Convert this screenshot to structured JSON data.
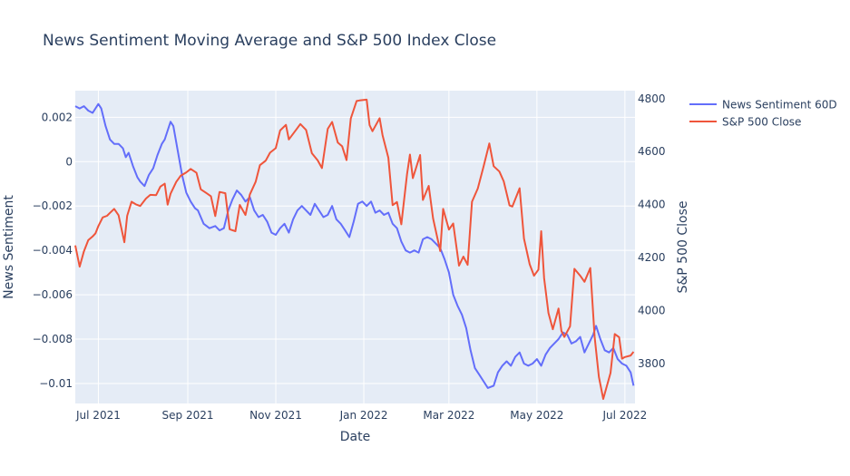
{
  "chart_data": {
    "type": "line",
    "title": "News Sentiment Moving Average and S&P 500 Index Close",
    "xlabel": "Date",
    "ylabel_left": "News Sentiment",
    "ylabel_right": "S&P 500 Close",
    "x_range": [
      "2021-06-15",
      "2022-07-08"
    ],
    "y_left_range": [
      -0.0109,
      0.0032
    ],
    "y_right_range": [
      3650,
      4830
    ],
    "x_ticks": [
      {
        "date": "2021-07-01",
        "label": "Jul 2021"
      },
      {
        "date": "2021-09-01",
        "label": "Sep 2021"
      },
      {
        "date": "2021-11-01",
        "label": "Nov 2021"
      },
      {
        "date": "2022-01-01",
        "label": "Jan 2022"
      },
      {
        "date": "2022-03-01",
        "label": "Mar 2022"
      },
      {
        "date": "2022-05-01",
        "label": "May 2022"
      },
      {
        "date": "2022-07-01",
        "label": "Jul 2022"
      }
    ],
    "y_left_ticks": [
      {
        "value": 0.002,
        "label": "0.002"
      },
      {
        "value": 0,
        "label": "0"
      },
      {
        "value": -0.002,
        "label": "−0.002"
      },
      {
        "value": -0.004,
        "label": "−0.004"
      },
      {
        "value": -0.006,
        "label": "−0.006"
      },
      {
        "value": -0.008,
        "label": "−0.008"
      },
      {
        "value": -0.01,
        "label": "−0.01"
      }
    ],
    "y_right_ticks": [
      {
        "value": 4800,
        "label": "4800"
      },
      {
        "value": 4600,
        "label": "4600"
      },
      {
        "value": 4400,
        "label": "4400"
      },
      {
        "value": 4200,
        "label": "4200"
      },
      {
        "value": 4000,
        "label": "4000"
      },
      {
        "value": 3800,
        "label": "3800"
      }
    ],
    "grid": true,
    "legend_position": "top-right",
    "series": [
      {
        "name": "News Sentiment 60D",
        "axis": "left",
        "color": "#636efa",
        "points": [
          [
            "2021-06-15",
            0.0025
          ],
          [
            "2021-06-18",
            0.0024
          ],
          [
            "2021-06-21",
            0.0025
          ],
          [
            "2021-06-24",
            0.0023
          ],
          [
            "2021-06-27",
            0.0022
          ],
          [
            "2021-07-01",
            0.0026
          ],
          [
            "2021-07-03",
            0.0024
          ],
          [
            "2021-07-06",
            0.0016
          ],
          [
            "2021-07-09",
            0.001
          ],
          [
            "2021-07-12",
            0.0008
          ],
          [
            "2021-07-15",
            0.0008
          ],
          [
            "2021-07-18",
            0.0006
          ],
          [
            "2021-07-20",
            0.0002
          ],
          [
            "2021-07-22",
            0.0004
          ],
          [
            "2021-07-25",
            -0.0002
          ],
          [
            "2021-07-28",
            -0.0007
          ],
          [
            "2021-07-30",
            -0.0009
          ],
          [
            "2021-08-02",
            -0.0011
          ],
          [
            "2021-08-05",
            -0.0006
          ],
          [
            "2021-08-08",
            -0.0003
          ],
          [
            "2021-08-11",
            0.0003
          ],
          [
            "2021-08-14",
            0.0008
          ],
          [
            "2021-08-16",
            0.001
          ],
          [
            "2021-08-18",
            0.0014
          ],
          [
            "2021-08-20",
            0.0018
          ],
          [
            "2021-08-22",
            0.0016
          ],
          [
            "2021-08-25",
            0.0005
          ],
          [
            "2021-08-28",
            -0.0006
          ],
          [
            "2021-08-31",
            -0.0014
          ],
          [
            "2021-09-03",
            -0.0018
          ],
          [
            "2021-09-06",
            -0.0021
          ],
          [
            "2021-09-08",
            -0.0022
          ],
          [
            "2021-09-12",
            -0.0028
          ],
          [
            "2021-09-16",
            -0.003
          ],
          [
            "2021-09-20",
            -0.0029
          ],
          [
            "2021-09-23",
            -0.0031
          ],
          [
            "2021-09-26",
            -0.003
          ],
          [
            "2021-09-29",
            -0.0022
          ],
          [
            "2021-10-02",
            -0.0017
          ],
          [
            "2021-10-05",
            -0.0013
          ],
          [
            "2021-10-08",
            -0.0015
          ],
          [
            "2021-10-11",
            -0.0018
          ],
          [
            "2021-10-14",
            -0.0016
          ],
          [
            "2021-10-17",
            -0.0022
          ],
          [
            "2021-10-20",
            -0.0025
          ],
          [
            "2021-10-23",
            -0.0024
          ],
          [
            "2021-10-26",
            -0.0027
          ],
          [
            "2021-10-29",
            -0.0032
          ],
          [
            "2021-11-01",
            -0.0033
          ],
          [
            "2021-11-04",
            -0.003
          ],
          [
            "2021-11-07",
            -0.0028
          ],
          [
            "2021-11-10",
            -0.0032
          ],
          [
            "2021-11-13",
            -0.0026
          ],
          [
            "2021-11-16",
            -0.0022
          ],
          [
            "2021-11-19",
            -0.002
          ],
          [
            "2021-11-22",
            -0.0022
          ],
          [
            "2021-11-25",
            -0.0024
          ],
          [
            "2021-11-28",
            -0.0019
          ],
          [
            "2021-12-01",
            -0.0022
          ],
          [
            "2021-12-04",
            -0.0025
          ],
          [
            "2021-12-07",
            -0.0024
          ],
          [
            "2021-12-10",
            -0.002
          ],
          [
            "2021-12-13",
            -0.0026
          ],
          [
            "2021-12-16",
            -0.0028
          ],
          [
            "2021-12-19",
            -0.0031
          ],
          [
            "2021-12-22",
            -0.0034
          ],
          [
            "2021-12-25",
            -0.0027
          ],
          [
            "2021-12-28",
            -0.0019
          ],
          [
            "2021-12-31",
            -0.0018
          ],
          [
            "2022-01-03",
            -0.002
          ],
          [
            "2022-01-06",
            -0.0018
          ],
          [
            "2022-01-09",
            -0.0023
          ],
          [
            "2022-01-12",
            -0.0022
          ],
          [
            "2022-01-15",
            -0.0024
          ],
          [
            "2022-01-18",
            -0.0023
          ],
          [
            "2022-01-21",
            -0.0028
          ],
          [
            "2022-01-24",
            -0.003
          ],
          [
            "2022-01-27",
            -0.0036
          ],
          [
            "2022-01-30",
            -0.004
          ],
          [
            "2022-02-02",
            -0.0041
          ],
          [
            "2022-02-05",
            -0.004
          ],
          [
            "2022-02-08",
            -0.0041
          ],
          [
            "2022-02-11",
            -0.0035
          ],
          [
            "2022-02-14",
            -0.0034
          ],
          [
            "2022-02-17",
            -0.0035
          ],
          [
            "2022-02-20",
            -0.0037
          ],
          [
            "2022-02-23",
            -0.0039
          ],
          [
            "2022-02-26",
            -0.0044
          ],
          [
            "2022-03-01",
            -0.005
          ],
          [
            "2022-03-04",
            -0.006
          ],
          [
            "2022-03-07",
            -0.0065
          ],
          [
            "2022-03-10",
            -0.0069
          ],
          [
            "2022-03-13",
            -0.0075
          ],
          [
            "2022-03-16",
            -0.0085
          ],
          [
            "2022-03-19",
            -0.0093
          ],
          [
            "2022-03-22",
            -0.0096
          ],
          [
            "2022-03-25",
            -0.0099
          ],
          [
            "2022-03-28",
            -0.0102
          ],
          [
            "2022-04-01",
            -0.0101
          ],
          [
            "2022-04-04",
            -0.0095
          ],
          [
            "2022-04-07",
            -0.0092
          ],
          [
            "2022-04-10",
            -0.009
          ],
          [
            "2022-04-13",
            -0.0092
          ],
          [
            "2022-04-16",
            -0.0088
          ],
          [
            "2022-04-19",
            -0.0086
          ],
          [
            "2022-04-22",
            -0.0091
          ],
          [
            "2022-04-25",
            -0.0092
          ],
          [
            "2022-04-28",
            -0.0091
          ],
          [
            "2022-05-01",
            -0.0089
          ],
          [
            "2022-05-04",
            -0.0092
          ],
          [
            "2022-05-07",
            -0.0087
          ],
          [
            "2022-05-10",
            -0.0084
          ],
          [
            "2022-05-13",
            -0.0082
          ],
          [
            "2022-05-16",
            -0.008
          ],
          [
            "2022-05-19",
            -0.0077
          ],
          [
            "2022-05-22",
            -0.0078
          ],
          [
            "2022-05-25",
            -0.0082
          ],
          [
            "2022-05-28",
            -0.0081
          ],
          [
            "2022-05-31",
            -0.0079
          ],
          [
            "2022-06-03",
            -0.0086
          ],
          [
            "2022-06-06",
            -0.0082
          ],
          [
            "2022-06-09",
            -0.0078
          ],
          [
            "2022-06-11",
            -0.0074
          ],
          [
            "2022-06-14",
            -0.008
          ],
          [
            "2022-06-17",
            -0.0085
          ],
          [
            "2022-06-20",
            -0.0086
          ],
          [
            "2022-06-23",
            -0.0084
          ],
          [
            "2022-06-26",
            -0.0089
          ],
          [
            "2022-06-29",
            -0.0091
          ],
          [
            "2022-07-02",
            -0.0092
          ],
          [
            "2022-07-05",
            -0.0095
          ],
          [
            "2022-07-07",
            -0.0101
          ]
        ]
      },
      {
        "name": "S&P 500 Close",
        "axis": "right",
        "color": "#ef553b",
        "points": [
          [
            "2021-06-15",
            4246
          ],
          [
            "2021-06-18",
            4166
          ],
          [
            "2021-06-21",
            4224
          ],
          [
            "2021-06-24",
            4266
          ],
          [
            "2021-06-27",
            4280
          ],
          [
            "2021-06-29",
            4292
          ],
          [
            "2021-07-01",
            4319
          ],
          [
            "2021-07-04",
            4352
          ],
          [
            "2021-07-07",
            4358
          ],
          [
            "2021-07-09",
            4369
          ],
          [
            "2021-07-12",
            4384
          ],
          [
            "2021-07-15",
            4360
          ],
          [
            "2021-07-19",
            4258
          ],
          [
            "2021-07-21",
            4358
          ],
          [
            "2021-07-24",
            4411
          ],
          [
            "2021-07-27",
            4401
          ],
          [
            "2021-07-30",
            4395
          ],
          [
            "2021-08-03",
            4423
          ],
          [
            "2021-08-06",
            4437
          ],
          [
            "2021-08-10",
            4436
          ],
          [
            "2021-08-13",
            4468
          ],
          [
            "2021-08-16",
            4479
          ],
          [
            "2021-08-18",
            4400
          ],
          [
            "2021-08-20",
            4441
          ],
          [
            "2021-08-24",
            4486
          ],
          [
            "2021-08-27",
            4509
          ],
          [
            "2021-08-31",
            4522
          ],
          [
            "2021-09-03",
            4535
          ],
          [
            "2021-09-07",
            4520
          ],
          [
            "2021-09-10",
            4458
          ],
          [
            "2021-09-14",
            4443
          ],
          [
            "2021-09-17",
            4432
          ],
          [
            "2021-09-20",
            4357
          ],
          [
            "2021-09-23",
            4448
          ],
          [
            "2021-09-27",
            4443
          ],
          [
            "2021-09-30",
            4307
          ],
          [
            "2021-10-04",
            4300
          ],
          [
            "2021-10-07",
            4399
          ],
          [
            "2021-10-11",
            4361
          ],
          [
            "2021-10-14",
            4438
          ],
          [
            "2021-10-18",
            4486
          ],
          [
            "2021-10-21",
            4549
          ],
          [
            "2021-10-25",
            4566
          ],
          [
            "2021-10-28",
            4596
          ],
          [
            "2021-11-01",
            4613
          ],
          [
            "2021-11-04",
            4680
          ],
          [
            "2021-11-08",
            4701
          ],
          [
            "2021-11-10",
            4646
          ],
          [
            "2021-11-15",
            4682
          ],
          [
            "2021-11-18",
            4704
          ],
          [
            "2021-11-22",
            4682
          ],
          [
            "2021-11-26",
            4594
          ],
          [
            "2021-11-30",
            4567
          ],
          [
            "2021-12-03",
            4538
          ],
          [
            "2021-12-07",
            4686
          ],
          [
            "2021-12-10",
            4712
          ],
          [
            "2021-12-14",
            4634
          ],
          [
            "2021-12-17",
            4620
          ],
          [
            "2021-12-20",
            4568
          ],
          [
            "2021-12-23",
            4725
          ],
          [
            "2021-12-27",
            4791
          ],
          [
            "2021-12-29",
            4793
          ],
          [
            "2022-01-03",
            4796
          ],
          [
            "2022-01-05",
            4700
          ],
          [
            "2022-01-07",
            4677
          ],
          [
            "2022-01-12",
            4726
          ],
          [
            "2022-01-14",
            4662
          ],
          [
            "2022-01-18",
            4577
          ],
          [
            "2022-01-21",
            4398
          ],
          [
            "2022-01-24",
            4410
          ],
          [
            "2022-01-27",
            4326
          ],
          [
            "2022-01-31",
            4515
          ],
          [
            "2022-02-02",
            4589
          ],
          [
            "2022-02-04",
            4500
          ],
          [
            "2022-02-09",
            4587
          ],
          [
            "2022-02-11",
            4418
          ],
          [
            "2022-02-15",
            4471
          ],
          [
            "2022-02-18",
            4348
          ],
          [
            "2022-02-23",
            4225
          ],
          [
            "2022-02-25",
            4384
          ],
          [
            "2022-03-01",
            4306
          ],
          [
            "2022-03-04",
            4329
          ],
          [
            "2022-03-08",
            4170
          ],
          [
            "2022-03-11",
            4204
          ],
          [
            "2022-03-14",
            4173
          ],
          [
            "2022-03-17",
            4411
          ],
          [
            "2022-03-21",
            4461
          ],
          [
            "2022-03-25",
            4543
          ],
          [
            "2022-03-29",
            4631
          ],
          [
            "2022-04-01",
            4545
          ],
          [
            "2022-04-05",
            4525
          ],
          [
            "2022-04-08",
            4488
          ],
          [
            "2022-04-12",
            4397
          ],
          [
            "2022-04-14",
            4393
          ],
          [
            "2022-04-19",
            4462
          ],
          [
            "2022-04-22",
            4272
          ],
          [
            "2022-04-26",
            4175
          ],
          [
            "2022-04-29",
            4132
          ],
          [
            "2022-05-02",
            4155
          ],
          [
            "2022-05-04",
            4300
          ],
          [
            "2022-05-06",
            4123
          ],
          [
            "2022-05-09",
            3991
          ],
          [
            "2022-05-12",
            3930
          ],
          [
            "2022-05-16",
            4008
          ],
          [
            "2022-05-18",
            3923
          ],
          [
            "2022-05-20",
            3901
          ],
          [
            "2022-05-24",
            3941
          ],
          [
            "2022-05-27",
            4158
          ],
          [
            "2022-05-31",
            4132
          ],
          [
            "2022-06-03",
            4109
          ],
          [
            "2022-06-07",
            4161
          ],
          [
            "2022-06-10",
            3901
          ],
          [
            "2022-06-13",
            3750
          ],
          [
            "2022-06-16",
            3667
          ],
          [
            "2022-06-21",
            3765
          ],
          [
            "2022-06-24",
            3912
          ],
          [
            "2022-06-27",
            3900
          ],
          [
            "2022-06-29",
            3819
          ],
          [
            "2022-07-01",
            3825
          ],
          [
            "2022-07-05",
            3831
          ],
          [
            "2022-07-07",
            3845
          ]
        ]
      }
    ]
  }
}
